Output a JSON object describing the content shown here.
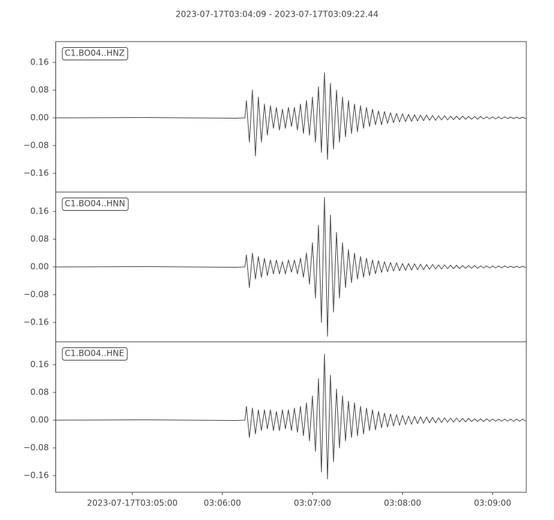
{
  "chart_data": [
    {
      "type": "line",
      "title": "2023-07-17T03:04:09  -  2023-07-17T03:09:22.44",
      "x": [
        0,
        60,
        120,
        126,
        127,
        129,
        131,
        133,
        135,
        137,
        139,
        141,
        143,
        145,
        147,
        149,
        151,
        153,
        155,
        157,
        159,
        161,
        163,
        165,
        167,
        169,
        171,
        173,
        175,
        177,
        179,
        181,
        183,
        185,
        187,
        189,
        191,
        193,
        195,
        197,
        199,
        201,
        203,
        205,
        207,
        209,
        211,
        213,
        215,
        217,
        219,
        221,
        223,
        225,
        227,
        229,
        231,
        233,
        235,
        237,
        239,
        241,
        243,
        245,
        247,
        249,
        251,
        253,
        255,
        257,
        259,
        261,
        263,
        265,
        267,
        269,
        271,
        273,
        275,
        277,
        279,
        281,
        283,
        285,
        287,
        289,
        291,
        293,
        295,
        297,
        299,
        301,
        303,
        305,
        307,
        309,
        311,
        313
      ],
      "xlim": [
        0,
        313.44
      ],
      "ylim": [
        -0.214,
        0.22
      ],
      "yticks": [
        {
          "value": -0.16,
          "label": "−0.16"
        },
        {
          "value": -0.08,
          "label": "−0.08"
        },
        {
          "value": 0,
          "label": "0.00"
        },
        0.08,
        0.16
      ],
      "series": [
        {
          "name": "C1.BO04..HNZ",
          "color": "#444444",
          "values": [
            0,
            0.001,
            -0.001,
            0,
            0.05,
            -0.07,
            0.08,
            -0.11,
            0.06,
            -0.07,
            0.04,
            -0.05,
            0.035,
            -0.03,
            0.03,
            -0.035,
            0.025,
            -0.03,
            0.03,
            -0.025,
            0.03,
            -0.035,
            0.04,
            -0.045,
            0.05,
            -0.05,
            0.06,
            -0.07,
            0.09,
            -0.1,
            0.13,
            -0.12,
            0.1,
            -0.09,
            0.08,
            -0.07,
            0.06,
            -0.055,
            0.05,
            -0.045,
            0.04,
            -0.04,
            0.035,
            -0.03,
            0.03,
            -0.025,
            0.025,
            -0.02,
            0.02,
            -0.02,
            0.018,
            -0.016,
            0.015,
            -0.014,
            0.013,
            -0.012,
            0.012,
            -0.011,
            0.01,
            -0.01,
            0.009,
            -0.009,
            0.008,
            -0.008,
            0.008,
            -0.007,
            0.007,
            -0.007,
            0.006,
            -0.006,
            0.006,
            -0.006,
            0.005,
            -0.005,
            0.005,
            -0.005,
            0.005,
            -0.004,
            0.004,
            -0.004,
            0.004,
            -0.004,
            0.004,
            -0.003,
            0.003,
            -0.003,
            0.003,
            -0.003,
            0.003,
            -0.003,
            0.003,
            -0.002,
            0.002,
            -0.002,
            0.002,
            -0.002,
            0.002,
            -0.002
          ]
        }
      ]
    },
    {
      "type": "line",
      "x": [
        0,
        60,
        120,
        126,
        127,
        129,
        131,
        133,
        135,
        137,
        139,
        141,
        143,
        145,
        147,
        149,
        151,
        153,
        155,
        157,
        159,
        161,
        163,
        165,
        167,
        169,
        171,
        173,
        175,
        177,
        179,
        181,
        183,
        185,
        187,
        189,
        191,
        193,
        195,
        197,
        199,
        201,
        203,
        205,
        207,
        209,
        211,
        213,
        215,
        217,
        219,
        221,
        223,
        225,
        227,
        229,
        231,
        233,
        235,
        237,
        239,
        241,
        243,
        245,
        247,
        249,
        251,
        253,
        255,
        257,
        259,
        261,
        263,
        265,
        267,
        269,
        271,
        273,
        275,
        277,
        279,
        281,
        283,
        285,
        287,
        289,
        291,
        293,
        295,
        297,
        299,
        301,
        303,
        305,
        307,
        309,
        311,
        313
      ],
      "xlim": [
        0,
        313.44
      ],
      "ylim": [
        -0.216,
        0.216
      ],
      "yticks": [
        {
          "value": -0.16,
          "label": "−0.16"
        },
        {
          "value": -0.08,
          "label": "−0.08"
        },
        {
          "value": 0,
          "label": "0.00"
        },
        0.08,
        0.16
      ],
      "series": [
        {
          "name": "C1.BO04..HNN",
          "color": "#444444",
          "values": [
            0,
            0.001,
            -0.001,
            0,
            0.035,
            -0.06,
            0.04,
            -0.035,
            0.03,
            -0.03,
            0.025,
            -0.025,
            0.02,
            -0.02,
            0.02,
            -0.02,
            0.015,
            -0.02,
            0.02,
            -0.015,
            0.02,
            -0.02,
            0.025,
            -0.03,
            0.04,
            -0.05,
            0.07,
            -0.09,
            0.12,
            -0.16,
            0.2,
            -0.2,
            0.15,
            -0.13,
            0.1,
            -0.09,
            0.07,
            -0.06,
            0.05,
            -0.045,
            0.04,
            -0.035,
            0.03,
            -0.03,
            0.025,
            -0.025,
            0.02,
            -0.02,
            0.018,
            -0.016,
            0.015,
            -0.014,
            0.013,
            -0.012,
            0.012,
            -0.011,
            0.01,
            -0.01,
            0.01,
            -0.009,
            0.009,
            -0.008,
            0.008,
            -0.008,
            0.007,
            -0.007,
            0.007,
            -0.006,
            0.006,
            -0.006,
            0.006,
            -0.005,
            0.005,
            -0.005,
            0.005,
            -0.005,
            0.004,
            -0.004,
            0.004,
            -0.004,
            0.004,
            -0.004,
            0.003,
            -0.003,
            0.003,
            -0.003,
            0.003,
            -0.003,
            0.003,
            -0.003,
            0.003,
            -0.002,
            0.002,
            -0.002,
            0.002,
            -0.002,
            0.002,
            -0.002
          ]
        }
      ]
    },
    {
      "type": "line",
      "x": [
        0,
        60,
        120,
        126,
        127,
        129,
        131,
        133,
        135,
        137,
        139,
        141,
        143,
        145,
        147,
        149,
        151,
        153,
        155,
        157,
        159,
        161,
        163,
        165,
        167,
        169,
        171,
        173,
        175,
        177,
        179,
        181,
        183,
        185,
        187,
        189,
        191,
        193,
        195,
        197,
        199,
        201,
        203,
        205,
        207,
        209,
        211,
        213,
        215,
        217,
        219,
        221,
        223,
        225,
        227,
        229,
        231,
        233,
        235,
        237,
        239,
        241,
        243,
        245,
        247,
        249,
        251,
        253,
        255,
        257,
        259,
        261,
        263,
        265,
        267,
        269,
        271,
        273,
        275,
        277,
        279,
        281,
        283,
        285,
        287,
        289,
        291,
        293,
        295,
        297,
        299,
        301,
        303,
        305,
        307,
        309,
        311,
        313
      ],
      "xlim": [
        0,
        313.44
      ],
      "xticks": [
        {
          "value": 51,
          "label": "2023-07-17T03:05:00"
        },
        {
          "value": 111,
          "label": "03:06:00"
        },
        {
          "value": 171,
          "label": "03:07:00"
        },
        {
          "value": 231,
          "label": "03:08:00"
        },
        {
          "value": 291,
          "label": "03:09:00"
        }
      ],
      "ylim": [
        -0.208,
        0.226
      ],
      "yticks": [
        {
          "value": -0.16,
          "label": "−0.16"
        },
        {
          "value": -0.08,
          "label": "−0.08"
        },
        {
          "value": 0,
          "label": "0.00"
        },
        0.08,
        0.16
      ],
      "series": [
        {
          "name": "C1.BO04..HNE",
          "color": "#444444",
          "values": [
            0,
            0.001,
            -0.001,
            0,
            0.04,
            -0.05,
            0.035,
            -0.04,
            0.03,
            -0.03,
            0.03,
            -0.025,
            0.03,
            -0.03,
            0.025,
            -0.03,
            0.03,
            -0.025,
            0.03,
            -0.03,
            0.035,
            -0.035,
            0.04,
            -0.045,
            0.05,
            -0.06,
            0.07,
            -0.09,
            0.12,
            -0.15,
            0.19,
            -0.17,
            0.13,
            -0.12,
            0.09,
            -0.08,
            0.07,
            -0.06,
            0.055,
            -0.05,
            0.05,
            -0.045,
            0.04,
            -0.04,
            0.035,
            -0.03,
            0.03,
            -0.028,
            0.025,
            -0.022,
            0.02,
            -0.02,
            0.018,
            -0.017,
            0.016,
            -0.015,
            0.014,
            -0.013,
            0.012,
            -0.012,
            0.011,
            -0.01,
            0.01,
            -0.009,
            0.009,
            -0.008,
            0.008,
            -0.008,
            0.007,
            -0.007,
            0.007,
            -0.006,
            0.006,
            -0.006,
            0.006,
            -0.005,
            0.005,
            -0.005,
            0.005,
            -0.004,
            0.004,
            -0.004,
            0.004,
            -0.004,
            0.004,
            -0.003,
            0.003,
            -0.003,
            0.003,
            -0.003,
            0.003,
            -0.003,
            0.003,
            -0.003,
            0.003,
            -0.003,
            0.003,
            -0.003
          ]
        }
      ]
    }
  ]
}
